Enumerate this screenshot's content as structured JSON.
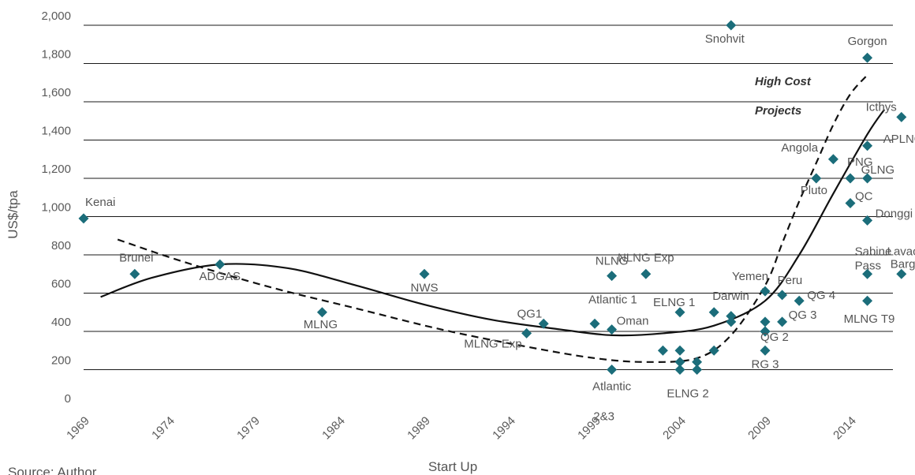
{
  "chart_data": {
    "type": "scatter",
    "xlabel": "Start Up",
    "ylabel": "US$/tpa",
    "ylim": [
      0,
      2000
    ],
    "xlim": [
      1969,
      2016.5
    ],
    "y_ticks": [
      "0",
      "200",
      "400",
      "600",
      "800",
      "1,000",
      "1,200",
      "1,400",
      "1,600",
      "1,800",
      "2,000"
    ],
    "x_ticks": [
      "1969",
      "1974",
      "1979",
      "1984",
      "1989",
      "1994",
      "1999",
      "2004",
      "2009",
      "2014"
    ],
    "grid": "horizontal",
    "marker_color": "#1b6d7a",
    "source": "Source: Author",
    "annotation": [
      "High Cost",
      "Projects"
    ],
    "points": [
      {
        "label": "Kenai",
        "x": 1969,
        "y": 990
      },
      {
        "label": "Brunei",
        "x": 1972,
        "y": 700
      },
      {
        "label": "ADGAS",
        "x": 1977,
        "y": 750
      },
      {
        "label": "MLNG",
        "x": 1983,
        "y": 500
      },
      {
        "label": "NWS",
        "x": 1989,
        "y": 700
      },
      {
        "label": "MLNG Exp",
        "x": 1995,
        "y": 390
      },
      {
        "label": "QG1",
        "x": 1996,
        "y": 440
      },
      {
        "label": "Atlantic 1",
        "x": 1999,
        "y": 440
      },
      {
        "label": "Oman",
        "x": 2000,
        "y": 410
      },
      {
        "label": "NLNG",
        "x": 2000,
        "y": 690
      },
      {
        "label": "NLNG Exp",
        "x": 2002,
        "y": 700
      },
      {
        "label": "Atlantic 2&3",
        "x": 2000,
        "y": 200
      },
      {
        "label": "ELNG 1",
        "x": 2004,
        "y": 500
      },
      {
        "label": "ELNG 2",
        "x": 2004,
        "y": 200
      },
      {
        "label": "",
        "x": 2003,
        "y": 300
      },
      {
        "label": "",
        "x": 2004,
        "y": 300
      },
      {
        "label": "",
        "x": 2004,
        "y": 240
      },
      {
        "label": "",
        "x": 2005,
        "y": 240
      },
      {
        "label": "",
        "x": 2005,
        "y": 200
      },
      {
        "label": "",
        "x": 2006,
        "y": 300
      },
      {
        "label": "Darwin",
        "x": 2006,
        "y": 500
      },
      {
        "label": "",
        "x": 2007,
        "y": 480
      },
      {
        "label": "",
        "x": 2007,
        "y": 450
      },
      {
        "label": "Snohvit",
        "x": 2007,
        "y": 2000
      },
      {
        "label": "Yemen",
        "x": 2009,
        "y": 610
      },
      {
        "label": "",
        "x": 2009,
        "y": 450
      },
      {
        "label": "",
        "x": 2009,
        "y": 400
      },
      {
        "label": "RG 3",
        "x": 2009,
        "y": 300
      },
      {
        "label": "Peru",
        "x": 2010,
        "y": 590
      },
      {
        "label": "QG 3",
        "x": 2010,
        "y": 450
      },
      {
        "label": "QG 2",
        "x": 2009,
        "y": 400
      },
      {
        "label": "QG 4",
        "x": 2011,
        "y": 560
      },
      {
        "label": "Pluto",
        "x": 2012,
        "y": 1200
      },
      {
        "label": "Angola",
        "x": 2013,
        "y": 1300
      },
      {
        "label": "QC",
        "x": 2014,
        "y": 1070
      },
      {
        "label": "PNG",
        "x": 2014,
        "y": 1200
      },
      {
        "label": "GLNG",
        "x": 2015,
        "y": 1200
      },
      {
        "label": "APLNG",
        "x": 2015,
        "y": 1370
      },
      {
        "label": "Donggi",
        "x": 2015,
        "y": 980
      },
      {
        "label": "Gorgon",
        "x": 2015,
        "y": 1830
      },
      {
        "label": "Sabine Pass",
        "x": 2015,
        "y": 700
      },
      {
        "label": "MLNG T9",
        "x": 2015,
        "y": 560
      },
      {
        "label": "Icthys",
        "x": 2017,
        "y": 1520
      },
      {
        "label": "Lavaca Barge",
        "x": 2017,
        "y": 700
      }
    ],
    "series": [
      {
        "style": "solid",
        "x": [
          1970,
          1973,
          1977,
          1981,
          1985,
          1989,
          1993,
          1997,
          2000,
          2003,
          2006,
          2009,
          2011,
          2013,
          2015,
          2016
        ],
        "y": [
          580,
          680,
          750,
          730,
          640,
          540,
          460,
          410,
          380,
          390,
          430,
          560,
          800,
          1120,
          1430,
          1560
        ]
      },
      {
        "style": "dashed",
        "x": [
          1971,
          1975,
          1980,
          1985,
          1990,
          1995,
          1999,
          2002,
          2005,
          2007,
          2009,
          2010,
          2011,
          2012,
          2013,
          2014,
          2015
        ],
        "y": [
          880,
          760,
          630,
          520,
          410,
          320,
          260,
          240,
          260,
          380,
          640,
          860,
          1080,
          1280,
          1480,
          1640,
          1740
        ]
      }
    ]
  }
}
